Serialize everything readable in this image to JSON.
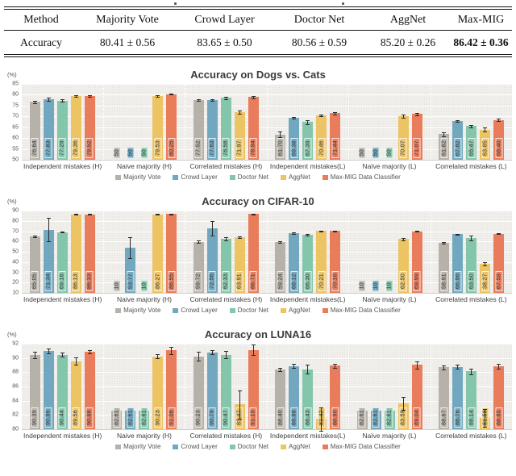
{
  "table": {
    "headers": [
      "Method",
      "Majority Vote",
      "Crowd Layer",
      "Doctor Net",
      "AggNet",
      "Max-MIG"
    ],
    "row_label": "Accuracy",
    "values": [
      "80.41 ± 0.56",
      "83.65 ± 0.50",
      "80.56 ± 0.59",
      "85.20 ± 0.26",
      "86.42 ± 0.36"
    ],
    "best_column": "Max-MIG"
  },
  "series": [
    {
      "name": "Majority Vote",
      "color": "#b7b2a9"
    },
    {
      "name": "Crowd Layer",
      "color": "#72a8bf"
    },
    {
      "name": "Doctor Net",
      "color": "#84c6ab"
    },
    {
      "name": "AggNet",
      "color": "#edc464"
    },
    {
      "name": "Max-MIG Data Classifier",
      "color": "#e87c5b"
    }
  ],
  "chart_data": [
    {
      "type": "bar",
      "title": "Accuracy on Dogs vs. Cats",
      "ylabel": "(%)",
      "ylim": [
        50,
        85
      ],
      "ytick_step": 5,
      "grid": true,
      "legend_position": "bottom",
      "categories": [
        "Independent mistakes (H)",
        "Naive majority (H)",
        "Correlated mistakes (H)",
        "Independent mistakes(L)",
        "Naïve majority (L)",
        "Correlated mistakes (L)"
      ],
      "series": [
        {
          "name": "Majority Vote",
          "values": [
            76.64,
            50,
            77.52,
            61.7,
            50,
            61.82
          ],
          "errors": [
            0.4,
            0,
            0.4,
            1.3,
            0,
            0.9
          ]
        },
        {
          "name": "Crowd Layer",
          "values": [
            77.83,
            50,
            77.63,
            69.38,
            50,
            67.82
          ],
          "errors": [
            0.7,
            0,
            0.4,
            0.4,
            0,
            0.5
          ]
        },
        {
          "name": "Doctor Net",
          "values": [
            77.29,
            50,
            78.58,
            67.39,
            50,
            65.47
          ],
          "errors": [
            0.5,
            0,
            0.5,
            1.0,
            0,
            0.5
          ]
        },
        {
          "name": "AggNet",
          "values": [
            79.36,
            79.53,
            71.97,
            70.46,
            70.07,
            63.85
          ],
          "errors": [
            0.4,
            0.4,
            0.8,
            0.5,
            0.7,
            0.9
          ]
        },
        {
          "name": "Max-MIG Data Classifier",
          "values": [
            79.52,
            80.25,
            78.94,
            71.44,
            71.07,
            68.4
          ],
          "errors": [
            0.4,
            0.25,
            0.5,
            0.6,
            0.6,
            0.5
          ]
        }
      ]
    },
    {
      "type": "bar",
      "title": "Accuracy on CIFAR-10",
      "ylabel": "(%)",
      "ylim": [
        10,
        90
      ],
      "ytick_step": 10,
      "grid": true,
      "legend_position": "bottom",
      "categories": [
        "Independent mistakes (H)",
        "Naive majority (H)",
        "Correlated mistakes (H)",
        "Independent mistakes(L)",
        "Naïve majority (L)",
        "Correlated mistakes (L)"
      ],
      "series": [
        {
          "name": "Majority Vote",
          "values": [
            65.05,
            10,
            59.72,
            59.24,
            10,
            58.91
          ],
          "errors": [
            0.9,
            0,
            1.2,
            0.7,
            0,
            0.7
          ]
        },
        {
          "name": "Crowd Layer",
          "values": [
            71.34,
            53.77,
            72.56,
            68.12,
            10,
            66.96
          ],
          "errors": [
            11.5,
            10.0,
            7.0,
            0.5,
            0,
            0.6
          ]
        },
        {
          "name": "Doctor Net",
          "values": [
            69.16,
            10,
            62.33,
            66.3,
            10,
            63.5
          ],
          "errors": [
            0.7,
            0,
            1.4,
            0.8,
            0,
            2.4
          ]
        },
        {
          "name": "AggNet",
          "values": [
            86.13,
            86.27,
            63.91,
            70.21,
            62.5,
            38.27
          ],
          "errors": [
            0.4,
            0.5,
            0.9,
            0.5,
            1.2,
            1.4
          ]
        },
        {
          "name": "Max-MIG Data Classifier",
          "values": [
            86.33,
            86.55,
            86.71,
            70.16,
            69.99,
            67.59
          ],
          "errors": [
            0.3,
            0.4,
            0.4,
            0.4,
            0.4,
            0.5
          ]
        }
      ]
    },
    {
      "type": "bar",
      "title": "Accuracy on LUNA16",
      "ylabel": "(%)",
      "ylim": [
        80,
        92
      ],
      "ytick_step": 2,
      "grid": true,
      "legend_position": "bottom",
      "categories": [
        "Independent mistakes (H)",
        "Naive majority (H)",
        "Correlated mistakes (H)",
        "Independent mistakes(L)",
        "Naïve majority (L)",
        "Correlated mistakes (L)"
      ],
      "series": [
        {
          "name": "Majority Vote",
          "values": [
            90.39,
            82.61,
            90.23,
            88.4,
            82.61,
            88.67
          ],
          "errors": [
            0.45,
            0,
            0.6,
            0.25,
            0,
            0.3
          ]
        },
        {
          "name": "Crowd Layer",
          "values": [
            90.96,
            82.61,
            90.79,
            88.88,
            82.61,
            88.76
          ],
          "errors": [
            0.35,
            0,
            0.3,
            0.3,
            0,
            0.25
          ]
        },
        {
          "name": "Doctor Net",
          "values": [
            90.44,
            82.61,
            90.47,
            88.43,
            82.61,
            88.14
          ],
          "errors": [
            0.3,
            0,
            0.5,
            0.65,
            0,
            0.4
          ]
        },
        {
          "name": "AggNet",
          "values": [
            89.56,
            90.23,
            83.47,
            81.42,
            83.59,
            81.58
          ],
          "errors": [
            0.55,
            0.3,
            2.0,
            1.6,
            0.9,
            1.2
          ]
        },
        {
          "name": "Max-MIG Data Classifier",
          "values": [
            90.88,
            91.06,
            91.15,
            88.9,
            89.04,
            88.85
          ],
          "errors": [
            0.25,
            0.5,
            0.75,
            0.25,
            0.5,
            0.35
          ]
        }
      ]
    }
  ]
}
